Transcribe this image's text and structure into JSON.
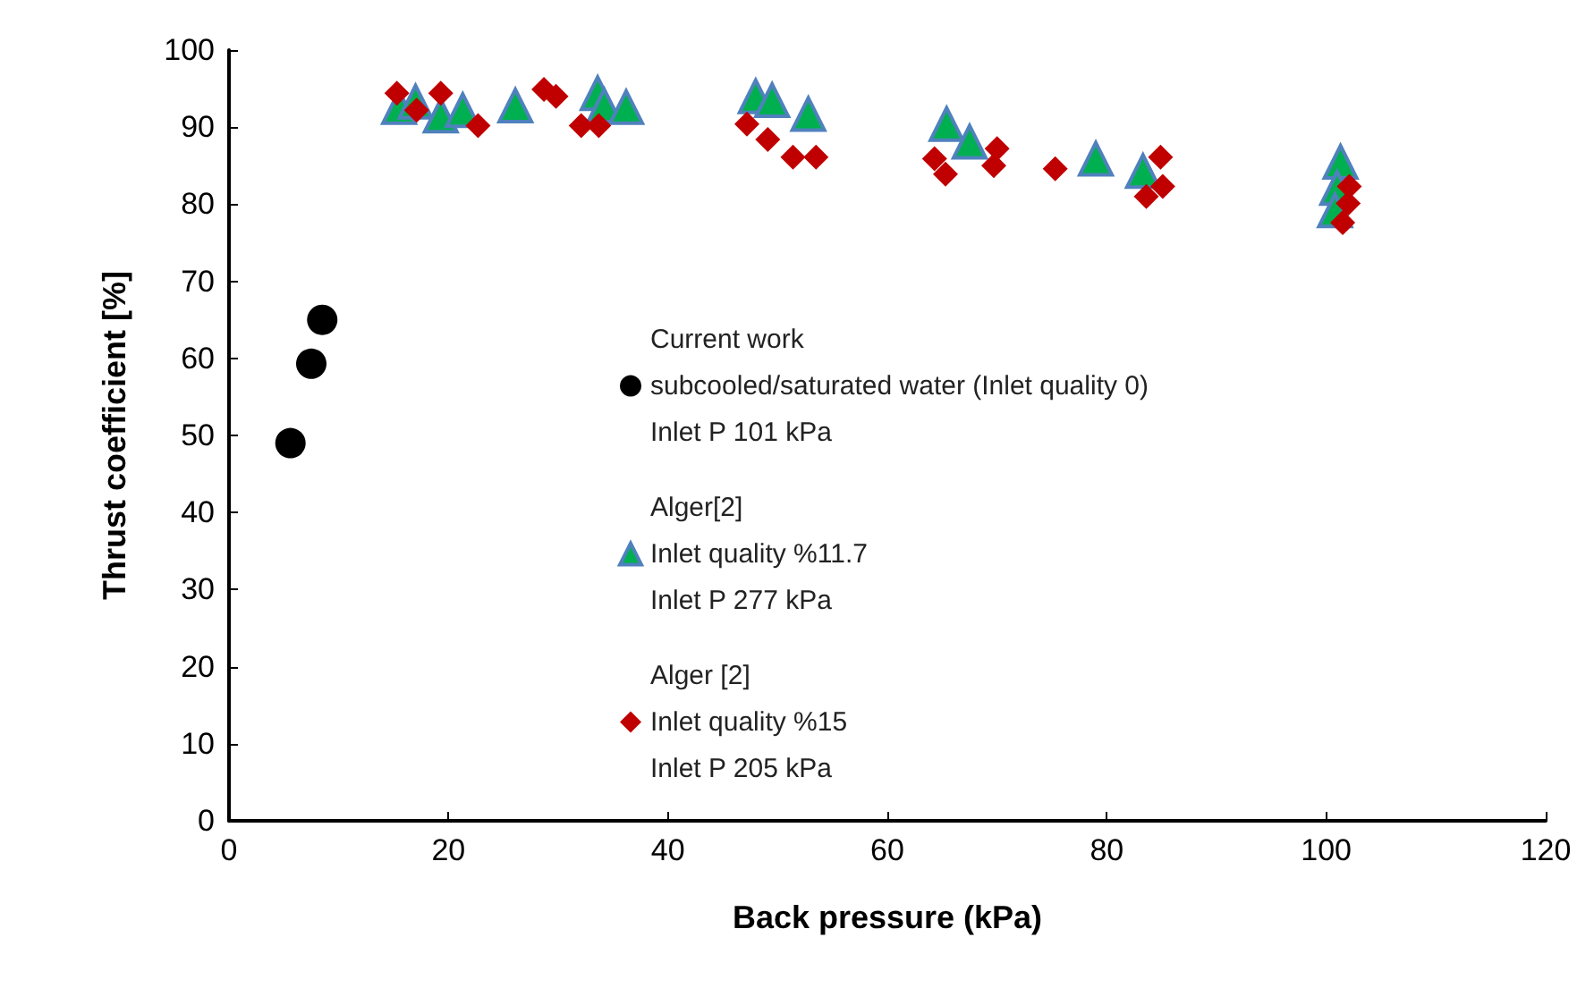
{
  "chart_data": {
    "type": "scatter",
    "xlabel": "Back pressure (kPa)",
    "ylabel": "Thrust coefficient [%]",
    "xlim": [
      0,
      120
    ],
    "ylim": [
      0,
      100
    ],
    "xticks": [
      0,
      20,
      40,
      60,
      80,
      100,
      120
    ],
    "yticks": [
      0,
      10,
      20,
      30,
      40,
      50,
      60,
      70,
      80,
      90,
      100
    ],
    "grid": false,
    "legend": "center",
    "series": [
      {
        "name": "Current work\nsubcooled/saturated water (Inlet quality 0)\nInlet P 101 kPa",
        "color": "#000000",
        "marker": "circle",
        "x": [
          5.6,
          7.5,
          8.5
        ],
        "values": [
          49,
          59.3,
          65
        ]
      },
      {
        "name": "Alger[2]\nInlet quality %11.7\nInlet P 277 kPa",
        "color": "#00b050",
        "marker": "triangle",
        "x": [
          15.5,
          17,
          19.3,
          21.3,
          26.1,
          33.6,
          34.2,
          36.2,
          48,
          49.5,
          52.8,
          65.4,
          67.5,
          79,
          83.3,
          101.3,
          101,
          100.8
        ],
        "values": [
          92.6,
          93.3,
          91.5,
          92.2,
          92.8,
          94.4,
          92.8,
          92.6,
          94,
          93.5,
          91.7,
          90.4,
          88.1,
          85.9,
          84.3,
          85.5,
          82.1,
          79.2
        ]
      },
      {
        "name": "Alger [2]\nInlet quality %15\nInlet P 205 kPa",
        "color": "#c00000",
        "marker": "diamond",
        "x": [
          15.3,
          17.1,
          19.3,
          22.7,
          28.7,
          29.8,
          32.1,
          33.7,
          47.2,
          49.1,
          51.4,
          53.5,
          64.3,
          65.3,
          69.7,
          70,
          75.3,
          84.9,
          85.1,
          83.6,
          102.1,
          102,
          101.5
        ],
        "values": [
          94.4,
          92.2,
          94.4,
          90.2,
          94.9,
          94,
          90.2,
          90.2,
          90.4,
          88.4,
          86.1,
          86.1,
          85.9,
          83.9,
          85,
          87.2,
          84.6,
          86.1,
          82.3,
          81,
          82.3,
          80.1,
          77.6
        ]
      }
    ]
  }
}
